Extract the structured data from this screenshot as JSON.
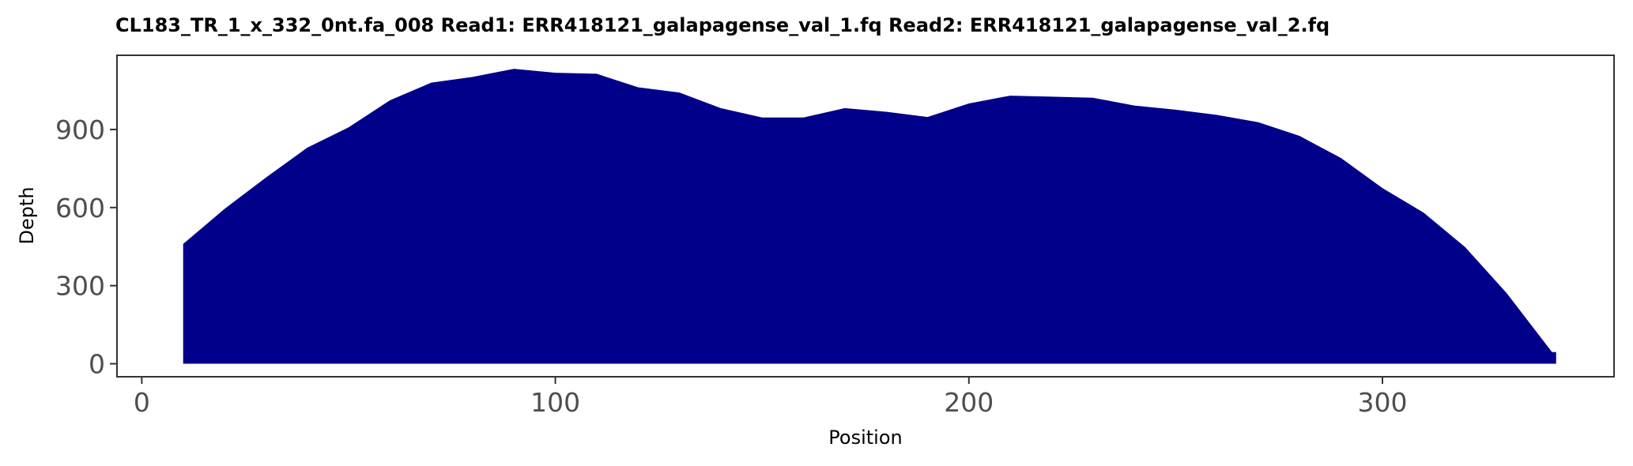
{
  "chart_data": {
    "type": "area",
    "title": "CL183_TR_1_x_332_0nt.fa_008   Read1: ERR418121_galapagense_val_1.fq   Read2: ERR418121_galapagense_val_2.fq",
    "xlabel": "Position",
    "ylabel": "Depth",
    "xlim": [
      -6,
      356
    ],
    "ylim": [
      -50,
      1185
    ],
    "xticks": [
      0,
      100,
      200,
      300
    ],
    "yticks": [
      0,
      300,
      600,
      900
    ],
    "grid": false,
    "series": [
      {
        "color": "#00008B",
        "x": [
          10,
          20,
          30,
          40,
          50,
          60,
          70,
          80,
          90,
          100,
          110,
          120,
          130,
          140,
          150,
          160,
          170,
          180,
          190,
          200,
          210,
          220,
          230,
          240,
          250,
          260,
          270,
          280,
          290,
          300,
          310,
          320,
          330,
          341,
          342
        ],
        "y": [
          460,
          595,
          715,
          830,
          908,
          1012,
          1080,
          1102,
          1133,
          1118,
          1114,
          1062,
          1042,
          982,
          946,
          946,
          982,
          968,
          948,
          1000,
          1030,
          1026,
          1022,
          992,
          976,
          956,
          928,
          875,
          790,
          675,
          580,
          448,
          272,
          45,
          45
        ]
      }
    ]
  }
}
